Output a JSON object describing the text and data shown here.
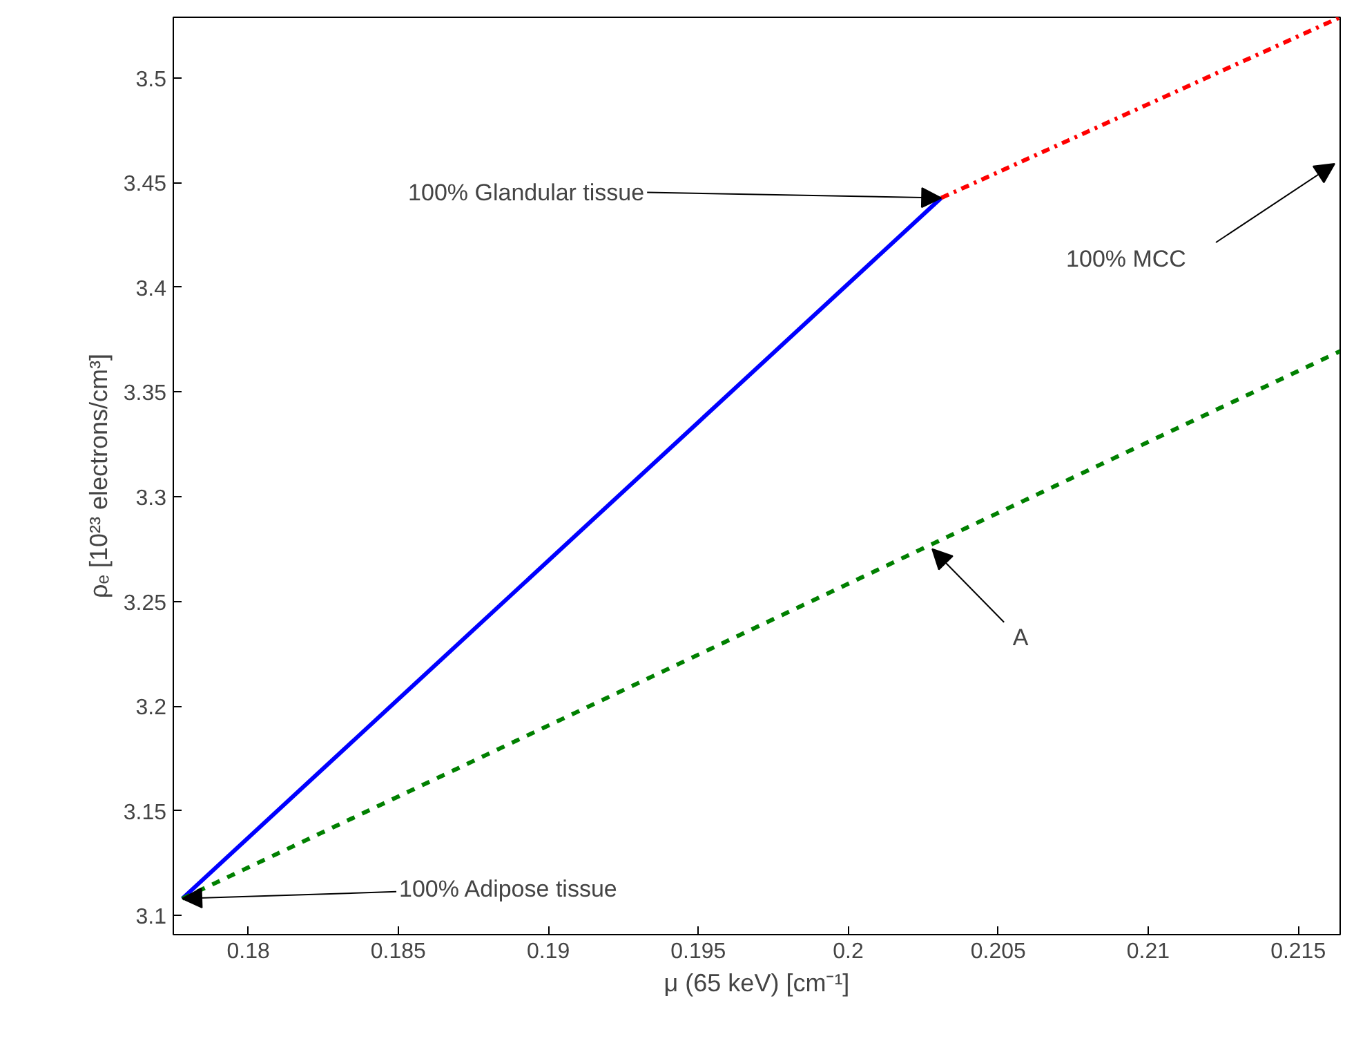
{
  "chart_data": {
    "type": "line",
    "xlabel": "μ (65 keV) [cm⁻¹]",
    "ylabel": "ρₑ [10²³ electrons/cm³]",
    "xlim": [
      0.1775,
      0.2164
    ],
    "ylim": [
      3.0908,
      3.529
    ],
    "xticks": [
      0.18,
      0.185,
      0.19,
      0.195,
      0.2,
      0.205,
      0.21,
      0.215
    ],
    "yticks": [
      3.1,
      3.15,
      3.2,
      3.25,
      3.3,
      3.35,
      3.4,
      3.45,
      3.5
    ],
    "grid": false,
    "series": [
      {
        "color": "#0000ff",
        "line_style": "solid",
        "x": [
          0.1778,
          0.2031
        ],
        "values": [
          3.108,
          3.4427
        ]
      },
      {
        "color": "#ff0000",
        "line_style": "dashdot",
        "x": [
          0.2031,
          0.2164
        ],
        "values": [
          3.4427,
          3.529
        ]
      },
      {
        "color": "#008000",
        "line_style": "dashed",
        "x": [
          0.1778,
          0.2164
        ],
        "values": [
          3.108,
          3.3695
        ]
      }
    ],
    "annotations": [
      {
        "text": "100% Glandular tissue",
        "x": 0.2031,
        "y": 3.4427
      },
      "100% MCC",
      {
        "text": "A",
        "x": 0.2028,
        "y": 3.275
      },
      {
        "text": "100% Adipose tissue",
        "x": 0.1778,
        "y": 3.108
      }
    ]
  }
}
